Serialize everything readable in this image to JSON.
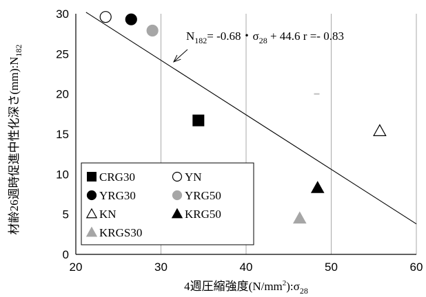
{
  "chart_data": {
    "type": "scatter",
    "xlabel": "4週圧縮強度(N/mm2):σ28",
    "xlabel_parts": {
      "main": "4週圧縮強度(N/mm",
      "sup": "2",
      "close": "):σ",
      "sub": "28"
    },
    "ylabel": "材齢26週時促進中性化深さ(mm):N182",
    "ylabel_parts": {
      "main": "材齢26週時促進中性化深さ(mm):N",
      "sub": "182"
    },
    "xlim": [
      20,
      60
    ],
    "ylim": [
      0,
      30
    ],
    "x_ticks": [
      20,
      30,
      40,
      50,
      60
    ],
    "y_ticks": [
      0,
      5,
      10,
      15,
      20,
      25,
      30
    ],
    "grid": "vertical",
    "legend_position": "bottom-left",
    "series": [
      {
        "name": "CRG30",
        "marker": "square",
        "fill": "#000000",
        "points": [
          [
            34.4,
            16.7
          ]
        ]
      },
      {
        "name": "YN",
        "marker": "circle",
        "fill": "#ffffff",
        "points": [
          [
            23.5,
            29.6
          ]
        ]
      },
      {
        "name": "YRG30",
        "marker": "circle",
        "fill": "#000000",
        "points": [
          [
            26.5,
            29.3
          ]
        ]
      },
      {
        "name": "YRG50",
        "marker": "circle",
        "fill": "#a6a6a6",
        "points": [
          [
            29.0,
            27.9
          ]
        ]
      },
      {
        "name": "KN",
        "marker": "triangle",
        "fill": "#ffffff",
        "points": [
          [
            55.7,
            15.4
          ]
        ]
      },
      {
        "name": "KRG50",
        "marker": "triangle",
        "fill": "#000000",
        "points": [
          [
            48.4,
            8.3
          ]
        ]
      },
      {
        "name": "KRGS30",
        "marker": "triangle",
        "fill": "#a6a6a6",
        "points": [
          [
            46.3,
            4.5
          ]
        ]
      }
    ],
    "regression": {
      "slope": -0.68,
      "intercept": 44.6,
      "x_range": [
        21.2,
        60
      ],
      "label_parts": {
        "n": "N",
        "n_sub": "182",
        "mid": "= -0.68・σ",
        "s_sub": "28",
        "tail": " + 44.6   r =- 0.83"
      },
      "label": "N182= -0.68・σ28 + 44.6   r =- 0.83",
      "arrow_target": [
        31.5,
        24.0
      ]
    },
    "stray_mark": {
      "x": 48.3,
      "y": 20.0,
      "color": "#bfbfbf"
    }
  }
}
